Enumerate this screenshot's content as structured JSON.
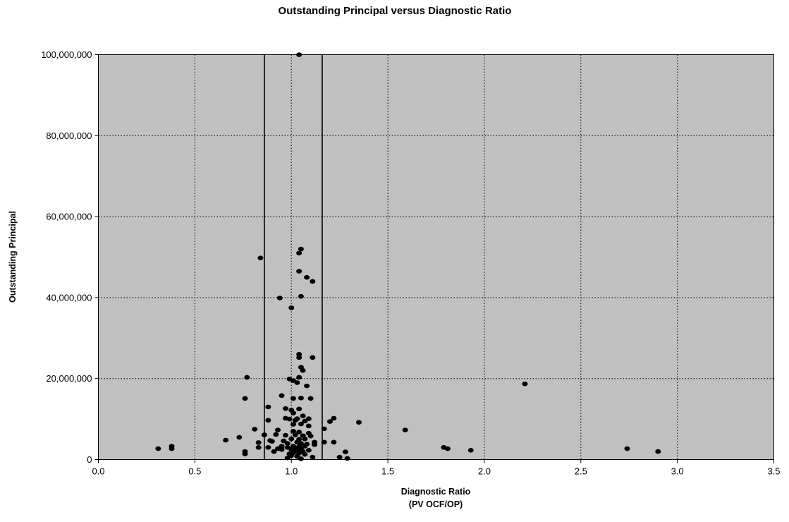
{
  "chart_data": {
    "type": "scatter",
    "title": "Outstanding Principal versus Diagnostic Ratio",
    "xlabel": [
      "Diagnostic Ratio",
      "(PV OCF/OP)"
    ],
    "ylabel": "Outstanding Principal",
    "xlim": [
      0,
      3.5
    ],
    "ylim": [
      0,
      100000000
    ],
    "x_ticks": [
      "0.0",
      "0.5",
      "1.0",
      "1.5",
      "2.0",
      "2.5",
      "3.0",
      "3.5"
    ],
    "y_ticks": [
      "0",
      "20,000,000",
      "40,000,000",
      "60,000,000",
      "80,000,000",
      "100,000,000"
    ],
    "grid": "dotted",
    "plot_background": "#c0c0c0",
    "marker_color": "#000000",
    "vertical_lines": [
      0.86,
      1.16
    ],
    "points": [
      [
        1.04,
        100000000
      ],
      [
        1.05,
        52000000
      ],
      [
        1.04,
        51000000
      ],
      [
        0.84,
        49800000
      ],
      [
        1.04,
        46500000
      ],
      [
        1.08,
        45000000
      ],
      [
        1.11,
        44000000
      ],
      [
        1.05,
        40300000
      ],
      [
        0.94,
        39900000
      ],
      [
        1.0,
        37500000
      ],
      [
        1.04,
        26000000
      ],
      [
        1.04,
        25200000
      ],
      [
        1.11,
        25200000
      ],
      [
        1.05,
        22800000
      ],
      [
        1.06,
        22000000
      ],
      [
        0.77,
        20300000
      ],
      [
        1.04,
        20300000
      ],
      [
        0.99,
        19900000
      ],
      [
        1.01,
        19500000
      ],
      [
        1.03,
        19000000
      ],
      [
        2.21,
        18700000
      ],
      [
        1.08,
        18200000
      ],
      [
        0.95,
        15800000
      ],
      [
        0.76,
        15100000
      ],
      [
        1.01,
        15100000
      ],
      [
        1.05,
        15200000
      ],
      [
        1.1,
        15100000
      ],
      [
        0.88,
        13000000
      ],
      [
        0.97,
        12600000
      ],
      [
        1.0,
        12200000
      ],
      [
        1.04,
        12500000
      ],
      [
        1.01,
        11500000
      ],
      [
        1.06,
        10800000
      ],
      [
        1.09,
        10100000
      ],
      [
        0.97,
        10200000
      ],
      [
        0.99,
        10000000
      ],
      [
        1.03,
        10100000
      ],
      [
        1.22,
        10200000
      ],
      [
        0.88,
        9700000
      ],
      [
        1.02,
        9700000
      ],
      [
        1.07,
        9500000
      ],
      [
        1.2,
        9400000
      ],
      [
        1.35,
        9200000
      ],
      [
        1.01,
        8700000
      ],
      [
        1.05,
        8800000
      ],
      [
        1.09,
        8300000
      ],
      [
        1.17,
        7600000
      ],
      [
        0.81,
        7500000
      ],
      [
        0.93,
        7300000
      ],
      [
        1.59,
        7300000
      ],
      [
        1.01,
        7000000
      ],
      [
        1.04,
        6800000
      ],
      [
        1.09,
        6500000
      ],
      [
        0.92,
        6200000
      ],
      [
        0.86,
        6100000
      ],
      [
        0.97,
        6000000
      ],
      [
        1.02,
        6100000
      ],
      [
        1.06,
        5900000
      ],
      [
        1.1,
        5800000
      ],
      [
        0.73,
        5500000
      ],
      [
        1.0,
        5100000
      ],
      [
        1.04,
        5000000
      ],
      [
        1.07,
        5100000
      ],
      [
        0.66,
        4800000
      ],
      [
        0.89,
        4700000
      ],
      [
        0.9,
        4500000
      ],
      [
        0.96,
        4600000
      ],
      [
        1.03,
        4300000
      ],
      [
        1.12,
        4300000
      ],
      [
        1.17,
        4300000
      ],
      [
        1.22,
        4300000
      ],
      [
        0.83,
        4200000
      ],
      [
        0.98,
        4000000
      ],
      [
        1.05,
        4000000
      ],
      [
        1.08,
        3800000
      ],
      [
        1.12,
        3700000
      ],
      [
        0.38,
        3300000
      ],
      [
        0.95,
        3300000
      ],
      [
        1.01,
        3300000
      ],
      [
        1.04,
        3200000
      ],
      [
        1.07,
        3300000
      ],
      [
        0.83,
        3000000
      ],
      [
        0.88,
        3000000
      ],
      [
        0.98,
        3000000
      ],
      [
        1.79,
        3000000
      ],
      [
        0.31,
        2700000
      ],
      [
        0.38,
        2700000
      ],
      [
        0.93,
        2700000
      ],
      [
        1.02,
        2700000
      ],
      [
        1.05,
        2700000
      ],
      [
        1.81,
        2700000
      ],
      [
        2.74,
        2700000
      ],
      [
        0.95,
        2500000
      ],
      [
        1.0,
        2500000
      ],
      [
        1.04,
        2400000
      ],
      [
        1.09,
        2300000
      ],
      [
        1.93,
        2300000
      ],
      [
        1.03,
        2200000
      ],
      [
        0.76,
        2000000
      ],
      [
        0.91,
        2000000
      ],
      [
        1.06,
        2000000
      ],
      [
        1.28,
        1900000
      ],
      [
        2.9,
        2000000
      ],
      [
        1.01,
        1700000
      ],
      [
        1.04,
        1600000
      ],
      [
        0.76,
        1400000
      ],
      [
        0.99,
        1400000
      ],
      [
        1.07,
        1300000
      ],
      [
        1.0,
        1000000
      ],
      [
        1.03,
        800000
      ],
      [
        1.11,
        600000
      ],
      [
        1.25,
        600000
      ],
      [
        0.98,
        400000
      ],
      [
        1.29,
        300000
      ],
      [
        1.05,
        200000
      ]
    ]
  }
}
